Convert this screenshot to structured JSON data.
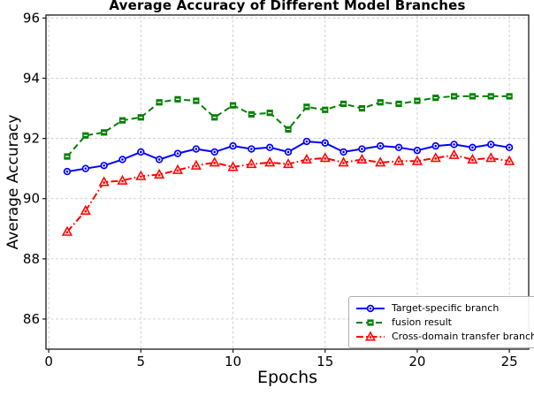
{
  "figure": {
    "title": "Average Accuracy of Different Model Branches",
    "xlabel": "Epochs",
    "ylabel": "Average Accuracy"
  },
  "chart_data": {
    "type": "line",
    "title": "Average Accuracy of Different Model Branches",
    "xlabel": "Epochs",
    "ylabel": "Average Accuracy",
    "grid": true,
    "legend_location": "lower right",
    "xticks": [
      0,
      5,
      10,
      15,
      20,
      25
    ],
    "yticks": [
      86,
      88,
      90,
      92,
      94,
      96
    ],
    "xlim": [
      -0.15,
      26.05
    ],
    "ylim": [
      85.0,
      96.1
    ],
    "x": [
      1,
      2,
      3,
      4,
      5,
      6,
      7,
      8,
      9,
      10,
      11,
      12,
      13,
      14,
      15,
      16,
      17,
      18,
      19,
      20,
      21,
      22,
      23,
      24,
      25
    ],
    "series": [
      {
        "name": "Target-specific branch",
        "color": "#0000ff",
        "marker": "circle",
        "linestyle": "solid",
        "values": [
          90.9,
          91.0,
          91.1,
          91.3,
          91.55,
          91.3,
          91.5,
          91.65,
          91.55,
          91.75,
          91.65,
          91.7,
          91.55,
          91.9,
          91.85,
          91.55,
          91.65,
          91.75,
          91.7,
          91.6,
          91.75,
          91.8,
          91.7,
          91.8,
          91.7
        ]
      },
      {
        "name": "fusion result",
        "color": "#008000",
        "marker": "square",
        "linestyle": "dashed",
        "values": [
          91.4,
          92.1,
          92.2,
          92.6,
          92.7,
          93.2,
          93.3,
          93.25,
          92.7,
          93.1,
          92.8,
          92.85,
          92.3,
          93.05,
          92.95,
          93.15,
          93.0,
          93.2,
          93.15,
          93.25,
          93.35,
          93.4,
          93.4,
          93.4,
          93.4
        ]
      },
      {
        "name": "Cross-domain transfer branch",
        "color": "#ff0000",
        "marker": "triangle",
        "linestyle": "dashdot",
        "values": [
          88.9,
          89.6,
          90.55,
          90.6,
          90.75,
          90.8,
          90.95,
          91.1,
          91.2,
          91.05,
          91.15,
          91.2,
          91.15,
          91.3,
          91.35,
          91.2,
          91.3,
          91.2,
          91.25,
          91.25,
          91.35,
          91.45,
          91.3,
          91.35,
          91.25
        ]
      }
    ]
  },
  "colors": {
    "background": "#ffffff",
    "grid": "#cccccc",
    "spine": "#1a1a1a",
    "text": "#000000",
    "legend_border": "#b0b0b0",
    "triangle_fill": "#ffdede"
  }
}
